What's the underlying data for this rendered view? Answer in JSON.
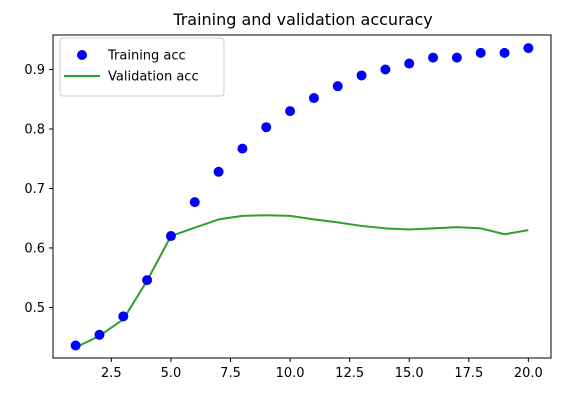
{
  "chart_data": {
    "type": "line",
    "title": "Training and validation accuracy",
    "xlabel": "",
    "ylabel": "",
    "xlim": [
      0.05,
      20.95
    ],
    "ylim": [
      0.415,
      0.958
    ],
    "xticks": [
      2.5,
      5.0,
      7.5,
      10.0,
      12.5,
      15.0,
      17.5,
      20.0
    ],
    "xtick_labels": [
      "2.5",
      "5.0",
      "7.5",
      "10.0",
      "12.5",
      "15.0",
      "17.5",
      "20.0"
    ],
    "yticks": [
      0.5,
      0.6,
      0.7,
      0.8,
      0.9
    ],
    "ytick_labels": [
      "0.5",
      "0.6",
      "0.7",
      "0.8",
      "0.9"
    ],
    "grid": false,
    "legend_position": "top-left",
    "x": [
      1,
      2,
      3,
      4,
      5,
      6,
      7,
      8,
      9,
      10,
      11,
      12,
      13,
      14,
      15,
      16,
      17,
      18,
      19,
      20
    ],
    "series": [
      {
        "name": "Training acc",
        "style": "markers",
        "color": "#0000ff",
        "values": [
          0.436,
          0.454,
          0.485,
          0.546,
          0.62,
          0.677,
          0.728,
          0.767,
          0.803,
          0.83,
          0.852,
          0.872,
          0.89,
          0.9,
          0.91,
          0.92,
          0.92,
          0.928,
          0.928,
          0.936
        ]
      },
      {
        "name": "Validation acc",
        "style": "line",
        "color": "#2ca02c",
        "values": [
          0.433,
          0.452,
          0.48,
          0.545,
          0.62,
          0.634,
          0.648,
          0.654,
          0.655,
          0.654,
          0.648,
          0.643,
          0.637,
          0.633,
          0.631,
          0.633,
          0.635,
          0.633,
          0.623,
          0.63
        ]
      }
    ]
  }
}
